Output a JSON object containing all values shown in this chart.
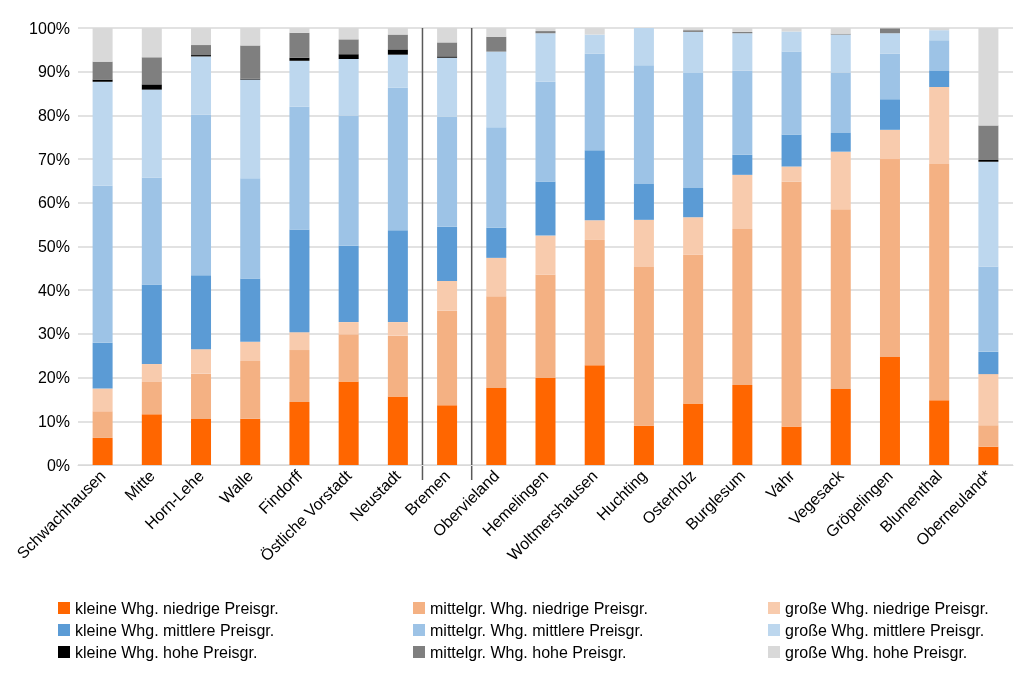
{
  "chart_data": {
    "type": "bar",
    "stacked": true,
    "categories": [
      "Schwachhausen",
      "Mitte",
      "Horn-Lehe",
      "Walle",
      "Findorff",
      "Östliche Vorstadt",
      "Neustadt",
      "Bremen",
      "Obervieland",
      "Hemelingen",
      "Woltmershausen",
      "Huchting",
      "Osterholz",
      "Burglesum",
      "Vahr",
      "Vegesack",
      "Gröpelingen",
      "Blumenthal",
      "Oberneuland*"
    ],
    "series": [
      {
        "name": "kleine Whg. niedrige Preisgr.",
        "color": "#ff6600",
        "values": [
          6.2,
          11.6,
          10.5,
          10.6,
          14.4,
          19.1,
          15.7,
          13.7,
          17.6,
          19.9,
          22.8,
          9.0,
          14.1,
          18.3,
          8.8,
          17.4,
          24.7,
          14.8,
          4.2
        ]
      },
      {
        "name": "mittelgr. Whg. niedrige Preisgr.",
        "color": "#f4b183",
        "values": [
          6.1,
          7.4,
          10.4,
          13.2,
          11.9,
          10.8,
          13.9,
          21.6,
          21.0,
          23.7,
          28.7,
          36.3,
          34.0,
          35.7,
          56.1,
          41.1,
          45.3,
          54.1,
          4.9
        ]
      },
      {
        "name": "große Whg. niedrige Preisgr.",
        "color": "#f8cbad",
        "values": [
          5.2,
          4.1,
          5.6,
          4.4,
          4.1,
          2.8,
          3.1,
          6.8,
          8.8,
          8.9,
          4.5,
          10.8,
          8.6,
          12.4,
          3.4,
          13.2,
          6.7,
          17.6,
          11.7
        ]
      },
      {
        "name": "kleine Whg. mittlere Preisgr.",
        "color": "#5b9bd5",
        "values": [
          10.5,
          18.2,
          16.9,
          14.5,
          23.5,
          17.5,
          21.0,
          12.4,
          6.9,
          12.4,
          16.0,
          8.2,
          6.7,
          4.6,
          7.3,
          4.3,
          7.0,
          3.8,
          5.1
        ]
      },
      {
        "name": "mittelgr. Whg. mittlere Preisgr.",
        "color": "#9dc3e6",
        "values": [
          35.9,
          24.5,
          36.8,
          22.9,
          28.1,
          29.8,
          32.7,
          25.2,
          23.0,
          22.8,
          22.1,
          27.2,
          26.3,
          19.3,
          19.0,
          13.8,
          10.4,
          6.9,
          19.5
        ]
      },
      {
        "name": "große Whg. mittlere Preisgr.",
        "color": "#bdd7ee",
        "values": [
          23.8,
          20.1,
          13.3,
          22.6,
          10.5,
          12.9,
          7.5,
          13.5,
          17.3,
          11.1,
          4.4,
          8.5,
          9.4,
          8.5,
          4.6,
          8.7,
          4.7,
          2.3,
          24.0
        ]
      },
      {
        "name": "kleine Whg. hohe Preisgr.",
        "color": "#000000",
        "values": [
          0.5,
          1.2,
          0.3,
          0.2,
          0.7,
          1.1,
          1.2,
          0.3,
          0,
          0,
          0,
          0,
          0,
          0,
          0,
          0,
          null,
          0,
          0.4
        ]
      },
      {
        "name": "mittelgr. Whg. hohe Preisgr.",
        "color": "#7f7f7f",
        "values": [
          4.1,
          6.2,
          2.3,
          7.6,
          5.7,
          3.4,
          3.4,
          3.2,
          3.4,
          0.5,
          0,
          0,
          0.4,
          0.3,
          0,
          0.2,
          1.1,
          0,
          7.9
        ]
      },
      {
        "name": "große Whg. hohe Preisgr.",
        "color": "#d9d9d9",
        "values": [
          7.7,
          6.7,
          3.9,
          4.0,
          1.1,
          2.6,
          1.5,
          3.3,
          2.0,
          0.7,
          1.5,
          0,
          0.5,
          0.9,
          0.8,
          1.3,
          0,
          0.5,
          22.3
        ]
      }
    ],
    "ylim": [
      0,
      100
    ],
    "yticks": [
      {
        "value": 0,
        "label": "0%"
      },
      {
        "value": 10,
        "label": "10%"
      },
      {
        "value": 20,
        "label": "20%"
      },
      {
        "value": 30,
        "label": "30%"
      },
      {
        "value": 40,
        "label": "40%"
      },
      {
        "value": 50,
        "label": "50%"
      },
      {
        "value": 60,
        "label": "60%"
      },
      {
        "value": 70,
        "label": "70%"
      },
      {
        "value": 80,
        "label": "80%"
      },
      {
        "value": 90,
        "label": "90%"
      },
      {
        "value": 100,
        "label": "100%"
      }
    ],
    "grid": "y",
    "legend": "bottom"
  }
}
